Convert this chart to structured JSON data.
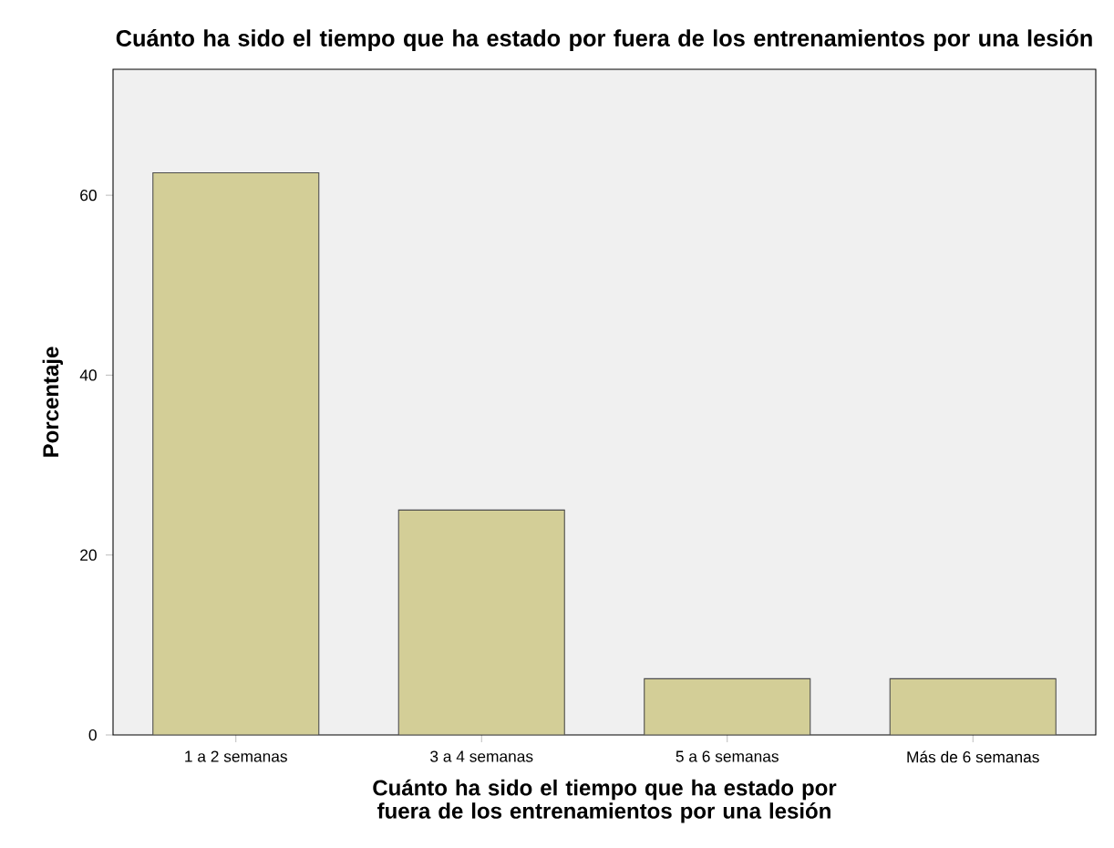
{
  "chart_data": {
    "type": "bar",
    "title": "Cuánto ha sido el tiempo que ha estado por fuera de los entrenamientos por una lesión",
    "xlabel": "Cuánto ha sido el tiempo que ha estado por fuera de los entrenamientos por una lesión",
    "ylabel": "Porcentaje",
    "categories": [
      "1 a 2 semanas",
      "3 a 4 semanas",
      "5 a 6 semanas",
      "Más de 6 semanas"
    ],
    "values": [
      62.5,
      25,
      6.25,
      6.25
    ],
    "color": "#d3ce97",
    "ylim": [
      0,
      74
    ],
    "yticks": [
      0,
      20,
      40,
      60
    ]
  }
}
